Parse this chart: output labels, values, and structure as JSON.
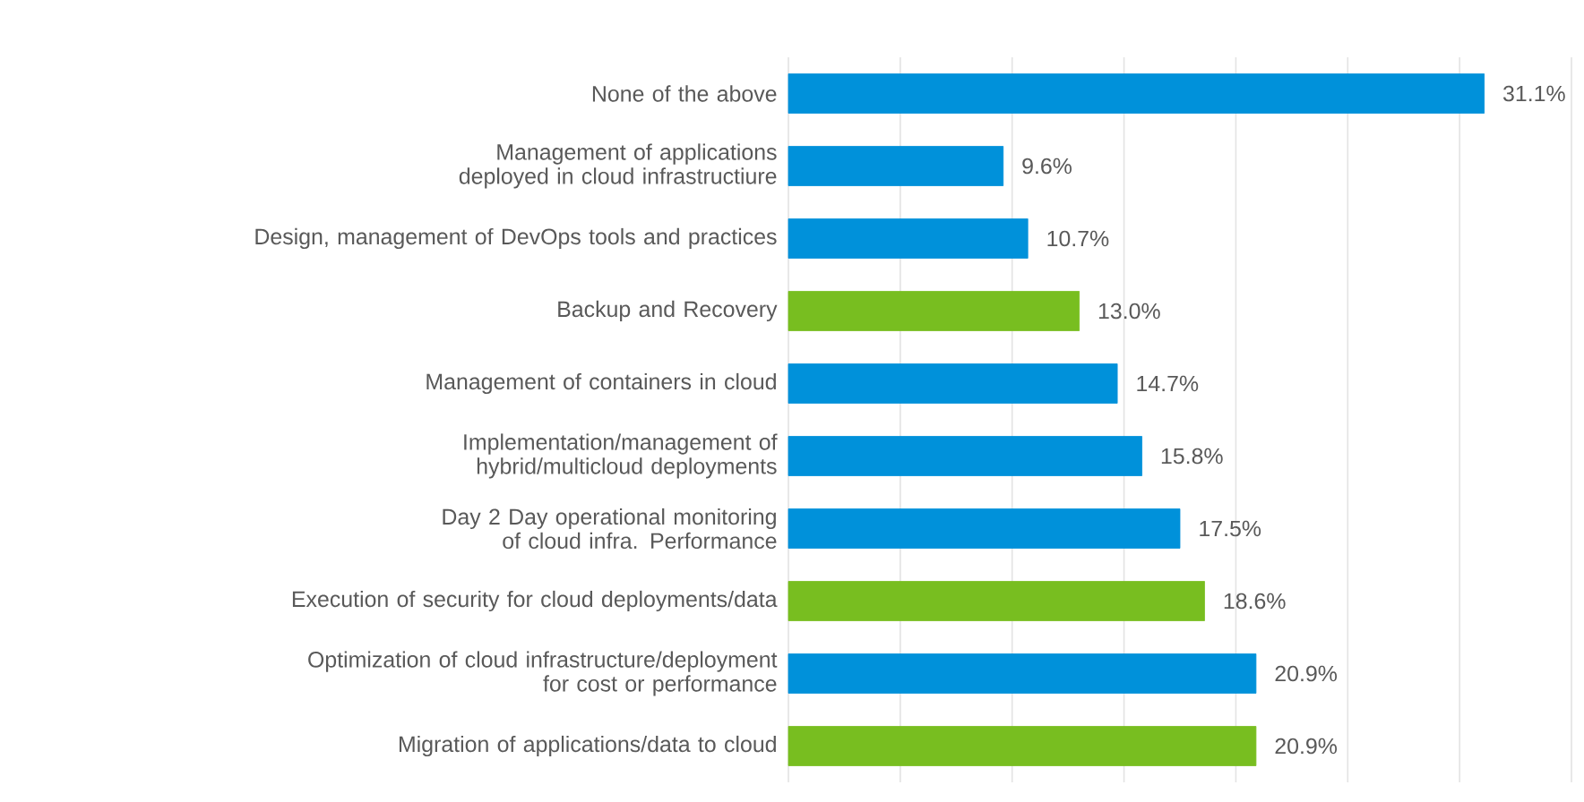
{
  "chart_data": {
    "type": "bar",
    "orientation": "horizontal",
    "categories": [
      "None of the above",
      "Management of applications deployed in cloud infrastructiure",
      "Design, management of DevOps tools and practices",
      "Backup and Recovery",
      "Management of containers  in cloud",
      "Implementation/management of hybrid/multicloud deployments",
      "Day 2 Day operational monitoring of cloud infra. Performance",
      "Execution of security for cloud deployments/data",
      "Optimization of cloud infrastructure/deployment for cost or performance",
      "Migration of applications/data to cloud"
    ],
    "values": [
      31.1,
      9.6,
      10.7,
      13.0,
      14.7,
      15.8,
      17.5,
      18.6,
      20.9,
      20.9
    ],
    "value_labels": [
      "31.1%",
      "9.6%",
      "10.7%",
      "13.0%",
      "14.7%",
      "15.8%",
      "17.5%",
      "18.6%",
      "20.9%",
      "20.9%"
    ],
    "colors": [
      "#0091da",
      "#0091da",
      "#0091da",
      "#78be20",
      "#0091da",
      "#0091da",
      "#0091da",
      "#78be20",
      "#0091da",
      "#78be20"
    ],
    "xlim": [
      0,
      35
    ],
    "xticks": [
      {
        "value": 0,
        "label": null
      },
      {
        "value": 5,
        "label": null
      },
      {
        "value": 10,
        "label": null
      },
      {
        "value": 15,
        "label": null
      },
      {
        "value": 20,
        "label": null
      },
      {
        "value": 25,
        "label": null
      },
      {
        "value": 30,
        "label": null
      },
      {
        "value": 35,
        "label": null
      }
    ],
    "grid": "x",
    "tick_labels": "y"
  }
}
